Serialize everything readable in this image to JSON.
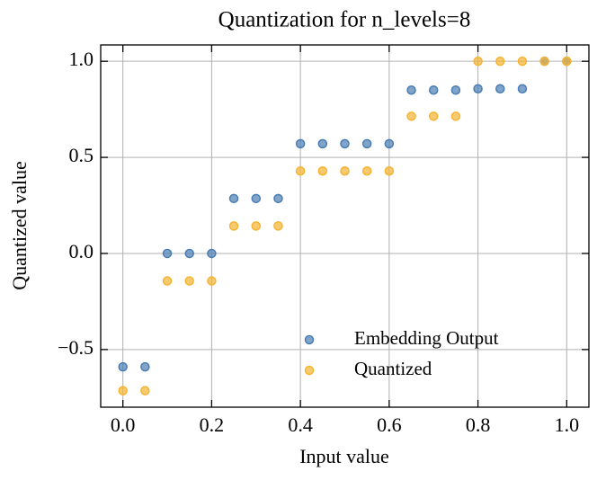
{
  "chart_data": {
    "type": "scatter",
    "title": "Quantization for n_levels=8",
    "x_label": "Input value",
    "y_label": "Quantized value",
    "x": [
      0,
      0.05,
      0.1,
      0.15,
      0.2,
      0.25,
      0.3,
      0.35,
      0.4,
      0.45,
      0.5,
      0.55,
      0.6,
      0.65,
      0.7,
      0.75,
      0.8,
      0.85,
      0.9,
      0.95,
      1.0
    ],
    "series": [
      {
        "name": "Embedding Output",
        "color": "#4a7db3",
        "values": [
          -0.59,
          -0.59,
          0.0,
          0.0,
          0.0,
          0.286,
          0.286,
          0.286,
          0.571,
          0.571,
          0.571,
          0.571,
          0.571,
          0.85,
          0.85,
          0.85,
          0.857,
          0.857,
          0.857,
          1.0,
          1.0
        ]
      },
      {
        "name": "Quantized",
        "color": "#f5b432",
        "values": [
          -0.714,
          -0.714,
          -0.143,
          -0.143,
          -0.143,
          0.143,
          0.143,
          0.143,
          0.429,
          0.429,
          0.429,
          0.429,
          0.429,
          0.714,
          0.714,
          0.714,
          1.0,
          1.0,
          1.0,
          1.0,
          1.0
        ]
      }
    ],
    "xlim": [
      -0.05,
      1.05
    ],
    "ylim": [
      -0.8,
      1.085
    ],
    "xticks": [
      {
        "value": 0,
        "label": "0.0"
      },
      0.2,
      0.4,
      0.6,
      0.8,
      {
        "value": 1,
        "label": "1.0"
      }
    ],
    "yticks": [
      {
        "value": -0.5,
        "label": "−0.5"
      },
      {
        "value": 0,
        "label": "0.0"
      },
      0.5,
      {
        "value": 1,
        "label": "1.0"
      }
    ],
    "grid": true,
    "legend": "lower right"
  }
}
